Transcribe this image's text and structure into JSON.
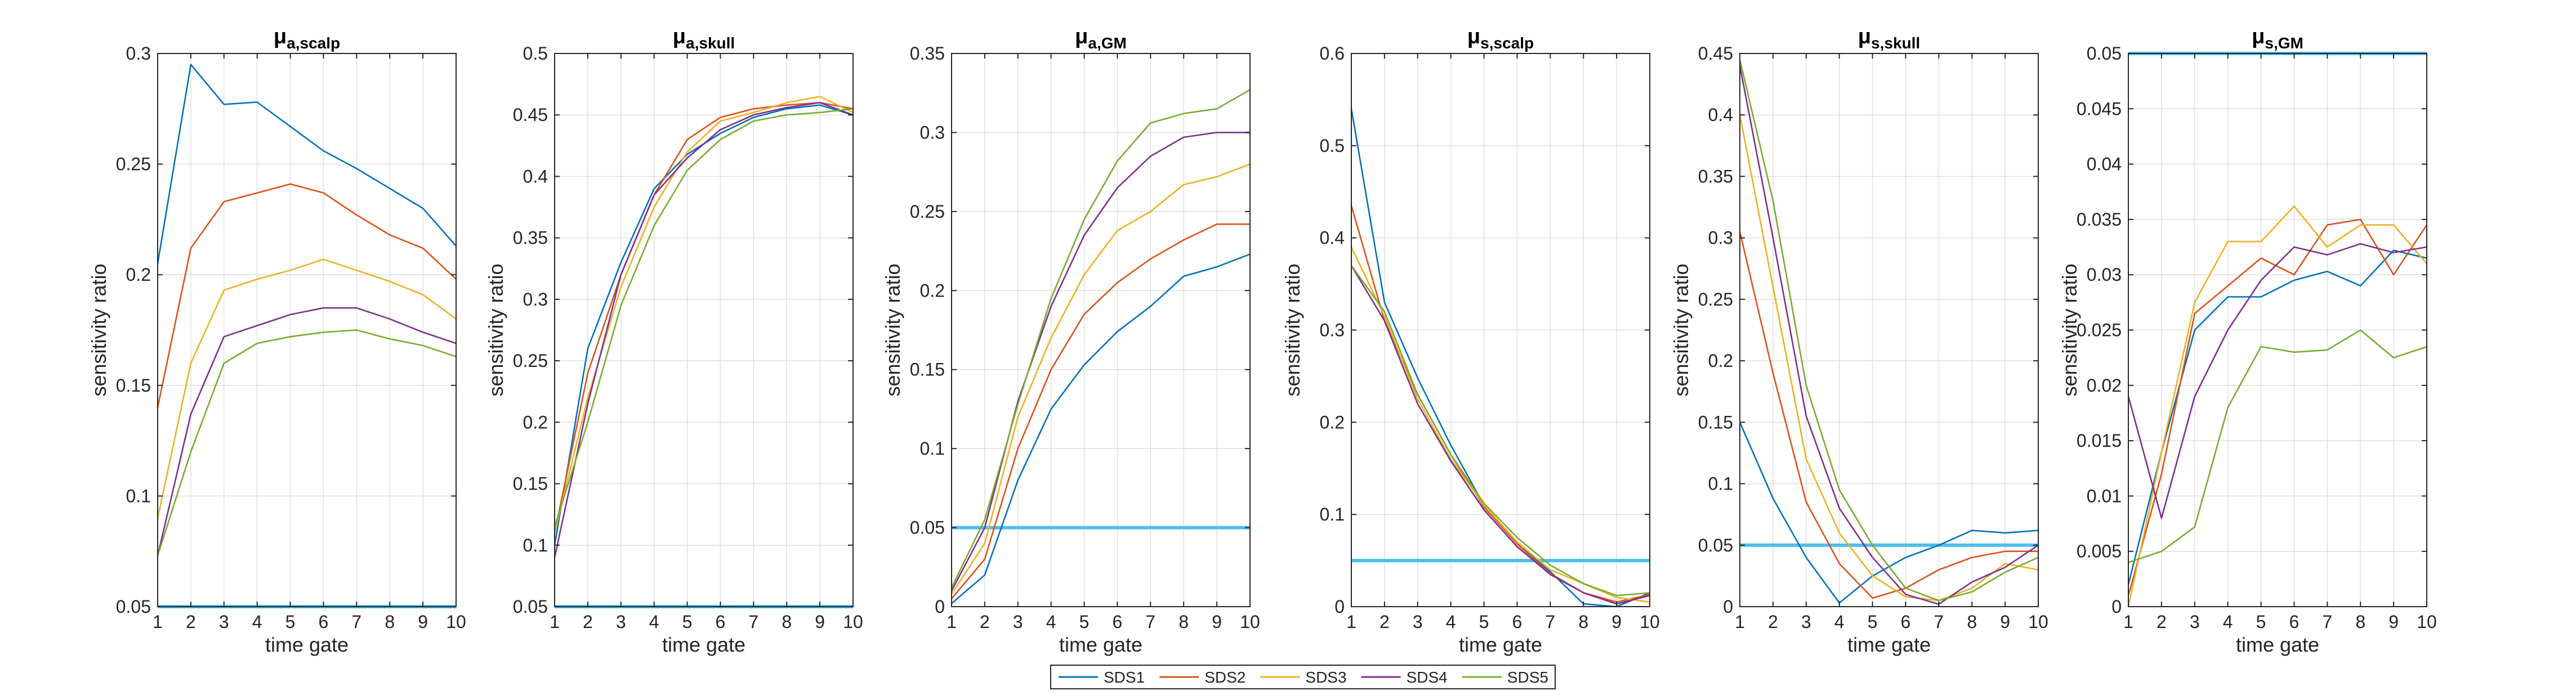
{
  "chart_data": {
    "type": "line",
    "x_ticks": [
      1,
      2,
      3,
      4,
      5,
      6,
      7,
      8,
      9,
      10
    ],
    "xlabel": "time gate",
    "ylabel": "sensitivity ratio",
    "grid": true,
    "legend": {
      "placement": "bottom-center",
      "orientation": "horizontal"
    },
    "colors": {
      "SDS1": "#0072bd",
      "SDS2": "#d95319",
      "SDS3": "#edb120",
      "SDS4": "#7e2f8e",
      "SDS5": "#77ac30",
      "threshold": "#4dbeee"
    },
    "series_names": [
      "SDS1",
      "SDS2",
      "SDS3",
      "SDS4",
      "SDS5"
    ],
    "threshold": 0.05,
    "panels": [
      {
        "title_main": "μ",
        "title_sub": "a,scalp",
        "ylim": [
          0.05,
          0.3
        ],
        "yticks": [
          0.05,
          0.1,
          0.15,
          0.2,
          0.25,
          0.3
        ],
        "ytick_labels": [
          "0.05",
          "0.1",
          "0.15",
          "0.2",
          "0.25",
          "0.3"
        ],
        "series": [
          {
            "name": "SDS1",
            "values": [
              0.205,
              0.295,
              0.277,
              0.278,
              0.267,
              0.256,
              0.248,
              0.239,
              0.23,
              0.213
            ]
          },
          {
            "name": "SDS2",
            "values": [
              0.14,
              0.212,
              0.233,
              0.237,
              0.241,
              0.237,
              0.227,
              0.218,
              0.212,
              0.198
            ]
          },
          {
            "name": "SDS3",
            "values": [
              0.09,
              0.16,
              0.193,
              0.198,
              0.202,
              0.207,
              0.202,
              0.197,
              0.191,
              0.18
            ]
          },
          {
            "name": "SDS4",
            "values": [
              0.073,
              0.137,
              0.172,
              0.177,
              0.182,
              0.185,
              0.185,
              0.18,
              0.174,
              0.169
            ]
          },
          {
            "name": "SDS5",
            "values": [
              0.073,
              0.12,
              0.16,
              0.169,
              0.172,
              0.174,
              0.175,
              0.171,
              0.168,
              0.163
            ]
          }
        ]
      },
      {
        "title_main": "μ",
        "title_sub": "a,skull",
        "ylim": [
          0.05,
          0.5
        ],
        "yticks": [
          0.05,
          0.1,
          0.15,
          0.2,
          0.25,
          0.3,
          0.35,
          0.4,
          0.45,
          0.5
        ],
        "ytick_labels": [
          "0.05",
          "0.1",
          "0.15",
          "0.2",
          "0.25",
          "0.3",
          "0.35",
          "0.4",
          "0.45",
          "0.5"
        ],
        "series": [
          {
            "name": "SDS1",
            "values": [
              0.1,
              0.26,
              0.33,
              0.39,
              0.418,
              0.435,
              0.448,
              0.455,
              0.458,
              0.45
            ]
          },
          {
            "name": "SDS2",
            "values": [
              0.11,
              0.24,
              0.32,
              0.385,
              0.43,
              0.448,
              0.455,
              0.458,
              0.46,
              0.455
            ]
          },
          {
            "name": "SDS3",
            "values": [
              0.11,
              0.22,
              0.31,
              0.375,
              0.42,
              0.445,
              0.452,
              0.46,
              0.465,
              0.452
            ]
          },
          {
            "name": "SDS4",
            "values": [
              0.09,
              0.215,
              0.32,
              0.385,
              0.415,
              0.438,
              0.45,
              0.456,
              0.46,
              0.45
            ]
          },
          {
            "name": "SDS5",
            "values": [
              0.115,
              0.2,
              0.295,
              0.36,
              0.405,
              0.43,
              0.445,
              0.45,
              0.452,
              0.455
            ]
          }
        ]
      },
      {
        "title_main": "μ",
        "title_sub": "a,GM",
        "ylim": [
          0,
          0.35
        ],
        "yticks": [
          0,
          0.05,
          0.1,
          0.15,
          0.2,
          0.25,
          0.3,
          0.35
        ],
        "ytick_labels": [
          "0",
          "0.05",
          "0.1",
          "0.15",
          "0.2",
          "0.25",
          "0.3",
          "0.35"
        ],
        "series": [
          {
            "name": "SDS1",
            "values": [
              0.002,
              0.02,
              0.08,
              0.125,
              0.153,
              0.174,
              0.19,
              0.209,
              0.215,
              0.223
            ]
          },
          {
            "name": "SDS2",
            "values": [
              0.005,
              0.03,
              0.1,
              0.15,
              0.185,
              0.205,
              0.22,
              0.232,
              0.242,
              0.242
            ]
          },
          {
            "name": "SDS3",
            "values": [
              0.008,
              0.04,
              0.12,
              0.17,
              0.21,
              0.238,
              0.25,
              0.267,
              0.272,
              0.28
            ]
          },
          {
            "name": "SDS4",
            "values": [
              0.01,
              0.05,
              0.13,
              0.19,
              0.235,
              0.265,
              0.285,
              0.297,
              0.3,
              0.3
            ]
          },
          {
            "name": "SDS5",
            "values": [
              0.012,
              0.055,
              0.128,
              0.195,
              0.245,
              0.282,
              0.306,
              0.312,
              0.315,
              0.327
            ]
          }
        ]
      },
      {
        "title_main": "μ",
        "title_sub": "s,scalp",
        "ylim": [
          0,
          0.6
        ],
        "yticks": [
          0,
          0.1,
          0.2,
          0.3,
          0.4,
          0.5,
          0.6
        ],
        "ytick_labels": [
          "0",
          "0.1",
          "0.2",
          "0.3",
          "0.4",
          "0.5",
          "0.6"
        ],
        "series": [
          {
            "name": "SDS1",
            "values": [
              0.54,
              0.33,
              0.248,
              0.175,
              0.11,
              0.07,
              0.038,
              0.003,
              0.0,
              0.015
            ]
          },
          {
            "name": "SDS2",
            "values": [
              0.435,
              0.31,
              0.23,
              0.165,
              0.108,
              0.068,
              0.036,
              0.015,
              0.005,
              0.013
            ]
          },
          {
            "name": "SDS3",
            "values": [
              0.39,
              0.315,
              0.225,
              0.16,
              0.11,
              0.07,
              0.04,
              0.025,
              0.01,
              0.005
            ]
          },
          {
            "name": "SDS4",
            "values": [
              0.37,
              0.31,
              0.22,
              0.158,
              0.105,
              0.065,
              0.035,
              0.015,
              0.003,
              0.012
            ]
          },
          {
            "name": "SDS5",
            "values": [
              0.37,
              0.32,
              0.23,
              0.165,
              0.112,
              0.075,
              0.045,
              0.025,
              0.012,
              0.015
            ]
          }
        ]
      },
      {
        "title_main": "μ",
        "title_sub": "s,skull",
        "ylim": [
          0,
          0.45
        ],
        "yticks": [
          0,
          0.05,
          0.1,
          0.15,
          0.2,
          0.25,
          0.3,
          0.35,
          0.4,
          0.45
        ],
        "ytick_labels": [
          "0",
          "0.05",
          "0.1",
          "0.15",
          "0.2",
          "0.25",
          "0.3",
          "0.35",
          "0.4",
          "0.45"
        ],
        "series": [
          {
            "name": "SDS1",
            "values": [
              0.15,
              0.088,
              0.04,
              0.003,
              0.025,
              0.04,
              0.05,
              0.062,
              0.06,
              0.062
            ]
          },
          {
            "name": "SDS2",
            "values": [
              0.305,
              0.19,
              0.085,
              0.035,
              0.007,
              0.015,
              0.03,
              0.04,
              0.045,
              0.045
            ]
          },
          {
            "name": "SDS3",
            "values": [
              0.4,
              0.26,
              0.12,
              0.06,
              0.025,
              0.008,
              0.005,
              0.015,
              0.035,
              0.03
            ]
          },
          {
            "name": "SDS4",
            "values": [
              0.44,
              0.3,
              0.155,
              0.08,
              0.04,
              0.01,
              0.002,
              0.02,
              0.032,
              0.05
            ]
          },
          {
            "name": "SDS5",
            "values": [
              0.445,
              0.33,
              0.18,
              0.095,
              0.05,
              0.015,
              0.005,
              0.012,
              0.028,
              0.04
            ]
          }
        ]
      },
      {
        "title_main": "μ",
        "title_sub": "s,GM",
        "ylim": [
          0,
          0.05
        ],
        "yticks": [
          0,
          0.005,
          0.01,
          0.015,
          0.02,
          0.025,
          0.03,
          0.035,
          0.04,
          0.045,
          0.05
        ],
        "ytick_labels": [
          "0",
          "0.005",
          "0.01",
          "0.015",
          "0.02",
          "0.025",
          "0.03",
          "0.035",
          "0.04",
          "0.045",
          "0.05"
        ],
        "series": [
          {
            "name": "SDS1",
            "values": [
              0.002,
              0.014,
              0.025,
              0.028,
              0.028,
              0.0295,
              0.0303,
              0.029,
              0.0322,
              0.0315
            ]
          },
          {
            "name": "SDS2",
            "values": [
              0.001,
              0.012,
              0.0265,
              0.029,
              0.0315,
              0.03,
              0.0345,
              0.035,
              0.03,
              0.0345
            ]
          },
          {
            "name": "SDS3",
            "values": [
              0.0,
              0.014,
              0.0275,
              0.033,
              0.033,
              0.0362,
              0.0325,
              0.0345,
              0.0345,
              0.031
            ]
          },
          {
            "name": "SDS4",
            "values": [
              0.019,
              0.008,
              0.019,
              0.025,
              0.0295,
              0.0325,
              0.0318,
              0.0328,
              0.032,
              0.0325
            ]
          },
          {
            "name": "SDS5",
            "values": [
              0.004,
              0.005,
              0.0072,
              0.018,
              0.0235,
              0.023,
              0.0232,
              0.025,
              0.0225,
              0.0235
            ]
          }
        ]
      }
    ]
  }
}
